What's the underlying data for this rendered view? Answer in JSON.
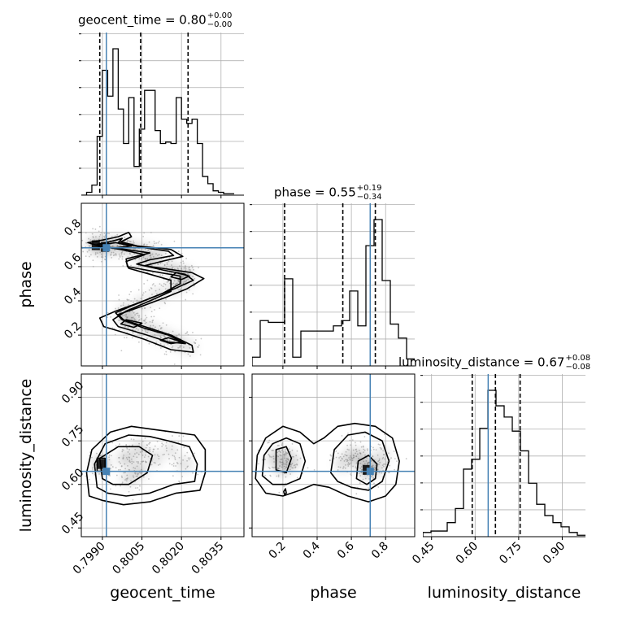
{
  "chart_data": {
    "type": "corner",
    "parameters": [
      {
        "key": "geocent_time",
        "label": "geocent_time",
        "range": [
          0.7982,
          0.80437
        ],
        "ticks": [
          0.799,
          0.8005,
          0.802,
          0.8035
        ],
        "tick_labels": [
          "0.7990",
          "0.8005",
          "0.8020",
          "0.8035"
        ],
        "truth": 0.79915,
        "quantiles": [
          0.7989,
          0.80045,
          0.80225
        ]
      },
      {
        "key": "phase",
        "label": "phase",
        "range": [
          0.02,
          0.97
        ],
        "ticks": [
          0.2,
          0.4,
          0.6,
          0.8
        ],
        "tick_labels": [
          "0.2",
          "0.4",
          "0.6",
          "0.8"
        ],
        "truth": 0.71,
        "quantiles": [
          0.21,
          0.55,
          0.74
        ]
      },
      {
        "key": "luminosity_distance",
        "label": "luminosity_distance",
        "range": [
          0.42,
          0.98
        ],
        "ticks": [
          0.45,
          0.6,
          0.75,
          0.9
        ],
        "tick_labels": [
          "0.45",
          "0.60",
          "0.75",
          "0.90"
        ],
        "truth": 0.645,
        "quantiles": [
          0.59,
          0.67,
          0.755
        ]
      }
    ],
    "titles": [
      {
        "text": "geocent_time = 0.80",
        "plus": "+0.00",
        "minus": "−0.00"
      },
      {
        "text": "phase = 0.55",
        "plus": "+0.19",
        "minus": "−0.34"
      },
      {
        "text": "luminosity_distance = 0.67",
        "plus": "+0.08",
        "minus": "−0.08"
      }
    ],
    "histograms": [
      {
        "param": "geocent_time",
        "step": 0.0002,
        "counts": [
          0,
          2,
          7,
          41,
          87,
          69,
          102,
          60,
          36,
          68,
          20,
          46,
          73,
          73,
          45,
          36,
          37,
          36,
          68,
          53,
          50,
          53,
          36,
          13,
          8,
          3,
          2,
          1,
          1
        ]
      },
      {
        "param": "phase",
        "step": 0.0475,
        "counts": [
          5,
          26,
          25,
          25,
          50,
          5,
          20,
          20,
          20,
          20,
          23,
          26,
          43,
          23,
          69,
          84,
          49,
          24,
          16,
          4
        ]
      },
      {
        "param": "luminosity_distance",
        "step": 0.028,
        "counts": [
          3,
          4,
          4,
          10,
          20,
          48,
          55,
          77,
          104,
          93,
          85,
          75,
          61,
          38,
          23,
          15,
          10,
          7,
          3,
          1
        ]
      }
    ],
    "pairs": [
      {
        "x": "geocent_time",
        "y": "phase",
        "contours": [
          [
            [
              0.79845,
              0.74
            ],
            [
              0.799,
              0.755
            ],
            [
              0.7996,
              0.775
            ],
            [
              0.8,
              0.8
            ],
            [
              0.8001,
              0.775
            ],
            [
              0.7997,
              0.745
            ],
            [
              0.80035,
              0.72
            ],
            [
              0.8016,
              0.7
            ],
            [
              0.80205,
              0.66
            ],
            [
              0.8011,
              0.625
            ],
            [
              0.8006,
              0.605
            ],
            [
              0.8015,
              0.585
            ],
            [
              0.8024,
              0.565
            ],
            [
              0.80285,
              0.53
            ],
            [
              0.8022,
              0.47
            ],
            [
              0.8014,
              0.42
            ],
            [
              0.80035,
              0.36
            ],
            [
              0.7996,
              0.32
            ],
            [
              0.7998,
              0.29
            ],
            [
              0.8006,
              0.25
            ],
            [
              0.8016,
              0.2
            ],
            [
              0.8024,
              0.14
            ],
            [
              0.80245,
              0.1
            ],
            [
              0.8016,
              0.115
            ],
            [
              0.8006,
              0.175
            ],
            [
              0.7998,
              0.215
            ],
            [
              0.79905,
              0.25
            ],
            [
              0.7989,
              0.3
            ],
            [
              0.7995,
              0.34
            ],
            [
              0.8004,
              0.39
            ],
            [
              0.8013,
              0.445
            ],
            [
              0.80195,
              0.5
            ],
            [
              0.80195,
              0.545
            ],
            [
              0.801,
              0.57
            ],
            [
              0.79995,
              0.6
            ],
            [
              0.7999,
              0.645
            ],
            [
              0.8008,
              0.68
            ],
            [
              0.7999,
              0.7
            ],
            [
              0.799,
              0.715
            ]
          ],
          [
            [
              0.7988,
              0.73
            ],
            [
              0.7994,
              0.75
            ],
            [
              0.79975,
              0.765
            ],
            [
              0.7996,
              0.74
            ],
            [
              0.8006,
              0.71
            ],
            [
              0.8015,
              0.69
            ],
            [
              0.8017,
              0.665
            ],
            [
              0.8008,
              0.64
            ],
            [
              0.8003,
              0.615
            ],
            [
              0.8013,
              0.58
            ],
            [
              0.80215,
              0.555
            ],
            [
              0.80245,
              0.52
            ],
            [
              0.8018,
              0.475
            ],
            [
              0.8009,
              0.42
            ],
            [
              0.8001,
              0.37
            ],
            [
              0.7995,
              0.33
            ],
            [
              0.79975,
              0.29
            ],
            [
              0.8006,
              0.24
            ],
            [
              0.8015,
              0.2
            ],
            [
              0.80215,
              0.15
            ],
            [
              0.8015,
              0.16
            ],
            [
              0.8006,
              0.205
            ],
            [
              0.7996,
              0.25
            ],
            [
              0.7994,
              0.29
            ],
            [
              0.7999,
              0.34
            ],
            [
              0.8008,
              0.4
            ],
            [
              0.8016,
              0.455
            ],
            [
              0.8016,
              0.52
            ],
            [
              0.8007,
              0.56
            ],
            [
              0.8,
              0.59
            ],
            [
              0.7999,
              0.63
            ],
            [
              0.8006,
              0.67
            ],
            [
              0.7997,
              0.7
            ],
            [
              0.7989,
              0.72
            ]
          ],
          [
            [
              0.7988,
              0.725
            ],
            [
              0.7995,
              0.74
            ],
            [
              0.8001,
              0.72
            ],
            [
              0.7995,
              0.71
            ],
            [
              0.7989,
              0.715
            ]
          ],
          [
            [
              0.8018,
              0.565
            ],
            [
              0.8023,
              0.545
            ],
            [
              0.802,
              0.525
            ],
            [
              0.8016,
              0.54
            ]
          ],
          [
            [
              0.7999,
              0.29
            ],
            [
              0.8005,
              0.27
            ],
            [
              0.8002,
              0.245
            ],
            [
              0.7997,
              0.265
            ]
          ],
          [
            [
              0.8015,
              0.185
            ],
            [
              0.802,
              0.16
            ],
            [
              0.8016,
              0.15
            ],
            [
              0.8012,
              0.17
            ]
          ]
        ],
        "density": [
          [
            0.79875,
            0.725,
            1.0
          ],
          [
            0.7991,
            0.715,
            0.85
          ],
          [
            0.7996,
            0.725,
            0.8
          ],
          [
            0.8001,
            0.705,
            0.55
          ],
          [
            0.8006,
            0.69,
            0.5
          ],
          [
            0.8011,
            0.665,
            0.45
          ],
          [
            0.8007,
            0.625,
            0.4
          ],
          [
            0.8016,
            0.585,
            0.45
          ],
          [
            0.8021,
            0.555,
            0.55
          ],
          [
            0.80215,
            0.52,
            0.45
          ],
          [
            0.8017,
            0.48,
            0.35
          ],
          [
            0.8011,
            0.435,
            0.3
          ],
          [
            0.8005,
            0.385,
            0.3
          ],
          [
            0.7999,
            0.34,
            0.35
          ],
          [
            0.7999,
            0.3,
            0.55
          ],
          [
            0.8002,
            0.265,
            0.6
          ],
          [
            0.8008,
            0.23,
            0.45
          ],
          [
            0.8013,
            0.195,
            0.4
          ],
          [
            0.8018,
            0.165,
            0.4
          ],
          [
            0.80225,
            0.13,
            0.25
          ]
        ]
      },
      {
        "x": "geocent_time",
        "y": "luminosity_distance",
        "contours": [
          [
            [
              0.7985,
              0.56
            ],
            [
              0.7984,
              0.64
            ],
            [
              0.7986,
              0.72
            ],
            [
              0.7993,
              0.78
            ],
            [
              0.8001,
              0.8
            ],
            [
              0.8009,
              0.79
            ],
            [
              0.8017,
              0.78
            ],
            [
              0.8025,
              0.77
            ],
            [
              0.8029,
              0.72
            ],
            [
              0.8029,
              0.64
            ],
            [
              0.8027,
              0.58
            ],
            [
              0.8018,
              0.57
            ],
            [
              0.8008,
              0.54
            ],
            [
              0.7998,
              0.53
            ],
            [
              0.799,
              0.545
            ]
          ],
          [
            [
              0.7988,
              0.59
            ],
            [
              0.7987,
              0.67
            ],
            [
              0.7991,
              0.74
            ],
            [
              0.8,
              0.77
            ],
            [
              0.8008,
              0.765
            ],
            [
              0.8015,
              0.75
            ],
            [
              0.8023,
              0.73
            ],
            [
              0.8026,
              0.67
            ],
            [
              0.8025,
              0.61
            ],
            [
              0.8017,
              0.6
            ],
            [
              0.8008,
              0.57
            ],
            [
              0.7999,
              0.56
            ],
            [
              0.7992,
              0.57
            ]
          ],
          [
            [
              0.799,
              0.62
            ],
            [
              0.7989,
              0.69
            ],
            [
              0.7996,
              0.73
            ],
            [
              0.8004,
              0.73
            ],
            [
              0.8009,
              0.7
            ],
            [
              0.8007,
              0.64
            ],
            [
              0.8,
              0.6
            ],
            [
              0.7994,
              0.6
            ]
          ],
          [
            [
              0.7988,
              0.645
            ],
            [
              0.7988,
              0.69
            ],
            [
              0.7991,
              0.69
            ],
            [
              0.7991,
              0.645
            ]
          ]
        ],
        "density": [
          [
            0.79895,
            0.67,
            1.0
          ],
          [
            0.7999,
            0.69,
            0.6
          ],
          [
            0.8004,
            0.72,
            0.5
          ],
          [
            0.8004,
            0.65,
            0.55
          ],
          [
            0.801,
            0.69,
            0.35
          ],
          [
            0.8,
            0.62,
            0.4
          ],
          [
            0.8021,
            0.67,
            0.3
          ],
          [
            0.8016,
            0.72,
            0.25
          ]
        ]
      },
      {
        "x": "phase",
        "y": "luminosity_distance",
        "contours": [
          [
            [
              0.04,
              0.62
            ],
            [
              0.05,
              0.7
            ],
            [
              0.1,
              0.76
            ],
            [
              0.2,
              0.8
            ],
            [
              0.3,
              0.78
            ],
            [
              0.38,
              0.74
            ],
            [
              0.44,
              0.76
            ],
            [
              0.52,
              0.8
            ],
            [
              0.62,
              0.81
            ],
            [
              0.74,
              0.8
            ],
            [
              0.84,
              0.76
            ],
            [
              0.88,
              0.68
            ],
            [
              0.86,
              0.6
            ],
            [
              0.8,
              0.56
            ],
            [
              0.7,
              0.54
            ],
            [
              0.58,
              0.56
            ],
            [
              0.47,
              0.59
            ],
            [
              0.38,
              0.6
            ],
            [
              0.3,
              0.58
            ],
            [
              0.2,
              0.56
            ],
            [
              0.1,
              0.57
            ]
          ],
          [
            [
              0.08,
              0.63
            ],
            [
              0.09,
              0.7
            ],
            [
              0.14,
              0.74
            ],
            [
              0.22,
              0.76
            ],
            [
              0.3,
              0.74
            ],
            [
              0.33,
              0.68
            ],
            [
              0.3,
              0.62
            ],
            [
              0.22,
              0.6
            ],
            [
              0.14,
              0.6
            ]
          ],
          [
            [
              0.48,
              0.64
            ],
            [
              0.5,
              0.72
            ],
            [
              0.58,
              0.77
            ],
            [
              0.68,
              0.78
            ],
            [
              0.78,
              0.75
            ],
            [
              0.82,
              0.68
            ],
            [
              0.78,
              0.61
            ],
            [
              0.7,
              0.58
            ],
            [
              0.6,
              0.59
            ],
            [
              0.52,
              0.61
            ]
          ],
          [
            [
              0.16,
              0.65
            ],
            [
              0.16,
              0.72
            ],
            [
              0.22,
              0.73
            ],
            [
              0.25,
              0.69
            ],
            [
              0.22,
              0.64
            ]
          ],
          [
            [
              0.63,
              0.62
            ],
            [
              0.64,
              0.68
            ],
            [
              0.7,
              0.7
            ],
            [
              0.75,
              0.67
            ],
            [
              0.74,
              0.62
            ],
            [
              0.69,
              0.6
            ]
          ],
          [
            [
              0.205,
              0.575
            ],
            [
              0.215,
              0.585
            ],
            [
              0.22,
              0.57
            ],
            [
              0.21,
              0.565
            ]
          ]
        ],
        "density": [
          [
            0.2,
            0.66,
            0.7
          ],
          [
            0.2,
            0.7,
            0.5
          ],
          [
            0.26,
            0.68,
            0.45
          ],
          [
            0.14,
            0.69,
            0.35
          ],
          [
            0.69,
            0.65,
            1.0
          ],
          [
            0.66,
            0.69,
            0.7
          ],
          [
            0.74,
            0.66,
            0.6
          ],
          [
            0.6,
            0.7,
            0.45
          ],
          [
            0.55,
            0.67,
            0.35
          ],
          [
            0.78,
            0.7,
            0.3
          ]
        ]
      }
    ]
  }
}
